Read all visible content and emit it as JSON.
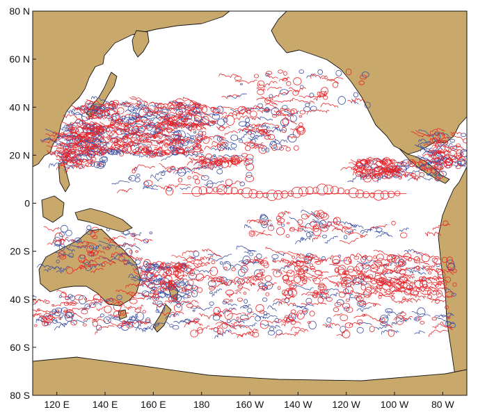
{
  "map": {
    "lat_ticks": [
      {
        "lat": 80,
        "label": "80 N"
      },
      {
        "lat": 60,
        "label": "60 N"
      },
      {
        "lat": 40,
        "label": "40 N"
      },
      {
        "lat": 20,
        "label": "20 N"
      },
      {
        "lat": 0,
        "label": "0"
      },
      {
        "lat": -20,
        "label": "20 S"
      },
      {
        "lat": -40,
        "label": "40 S"
      },
      {
        "lat": -60,
        "label": "60 S"
      },
      {
        "lat": -80,
        "label": "80 S"
      }
    ],
    "lon_ticks": [
      {
        "lon": 120,
        "label": "120 E"
      },
      {
        "lon": 140,
        "label": "140 E"
      },
      {
        "lon": 160,
        "label": "160 E"
      },
      {
        "lon": 180,
        "label": "180"
      },
      {
        "lon": 200,
        "label": "160 W"
      },
      {
        "lon": 220,
        "label": "140 W"
      },
      {
        "lon": 240,
        "label": "120 W"
      },
      {
        "lon": 260,
        "label": "100 W"
      },
      {
        "lon": 280,
        "label": "80 W"
      }
    ],
    "extent": {
      "lon_min": 110,
      "lon_max": 290,
      "lat_min": -80,
      "lat_max": 80
    },
    "colors": {
      "land": "#c9a86c",
      "coast": "#111111",
      "ocean": "#ffffff",
      "cyclonic": "#e8262a",
      "anticyclonic": "#3b4fa3"
    }
  }
}
